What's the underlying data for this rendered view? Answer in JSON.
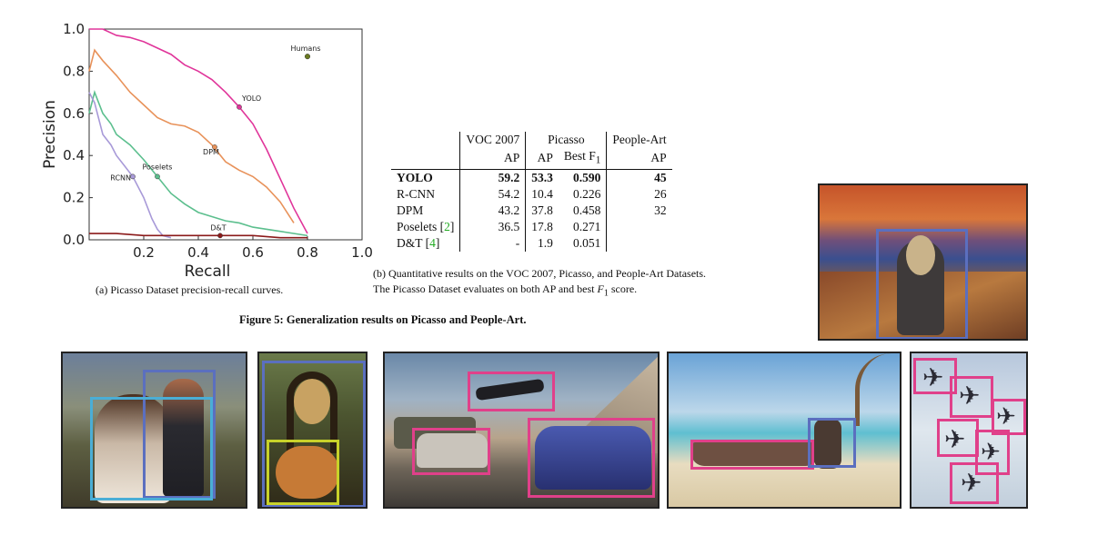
{
  "colors": {
    "humans": "#6b7a22",
    "yolo": "#e0359a",
    "dpm": "#e8925a",
    "poselets": "#5cbf8e",
    "rcnn": "#a89ad8",
    "dt": "#8b1a1a",
    "box_pink": "#e0408a",
    "box_blue": "#5b6fbf",
    "box_cyan": "#4aaed6",
    "box_yellow": "#c8d22a",
    "cite_green": "#22aa22"
  },
  "chart_data": {
    "type": "line",
    "title": "",
    "xlabel": "Recall",
    "ylabel": "Precision",
    "xlim": [
      0.0,
      1.0
    ],
    "ylim": [
      0.0,
      1.0
    ],
    "xticks": [
      "0.2",
      "0.4",
      "0.6",
      "0.8",
      "1.0"
    ],
    "yticks": [
      "0.0",
      "0.2",
      "0.4",
      "0.6",
      "0.8",
      "1.0"
    ],
    "grid": false,
    "series": [
      {
        "name": "YOLO",
        "color": "#e0359a",
        "label_point": [
          0.55,
          0.63
        ],
        "x": [
          0.0,
          0.05,
          0.1,
          0.15,
          0.2,
          0.25,
          0.3,
          0.35,
          0.4,
          0.45,
          0.5,
          0.55,
          0.6,
          0.65,
          0.7,
          0.75,
          0.8
        ],
        "y": [
          1.0,
          1.0,
          0.97,
          0.96,
          0.94,
          0.91,
          0.88,
          0.83,
          0.8,
          0.76,
          0.7,
          0.63,
          0.55,
          0.43,
          0.29,
          0.15,
          0.03
        ]
      },
      {
        "name": "DPM",
        "color": "#e8925a",
        "label_point": [
          0.46,
          0.44
        ],
        "x": [
          0.0,
          0.02,
          0.05,
          0.1,
          0.15,
          0.2,
          0.25,
          0.3,
          0.35,
          0.4,
          0.45,
          0.5,
          0.55,
          0.6,
          0.65,
          0.7,
          0.75
        ],
        "y": [
          0.8,
          0.9,
          0.85,
          0.78,
          0.7,
          0.64,
          0.58,
          0.55,
          0.54,
          0.51,
          0.45,
          0.37,
          0.33,
          0.3,
          0.25,
          0.18,
          0.08
        ]
      },
      {
        "name": "Poselets",
        "color": "#5cbf8e",
        "label_point": [
          0.25,
          0.3
        ],
        "x": [
          0.0,
          0.02,
          0.05,
          0.08,
          0.1,
          0.15,
          0.2,
          0.25,
          0.3,
          0.35,
          0.4,
          0.45,
          0.5,
          0.55,
          0.6,
          0.7,
          0.8
        ],
        "y": [
          0.6,
          0.7,
          0.6,
          0.55,
          0.5,
          0.45,
          0.38,
          0.3,
          0.22,
          0.17,
          0.13,
          0.11,
          0.09,
          0.08,
          0.06,
          0.04,
          0.02
        ]
      },
      {
        "name": "RCNN",
        "color": "#a89ad8",
        "label_point": [
          0.16,
          0.3
        ],
        "x": [
          0.0,
          0.02,
          0.05,
          0.08,
          0.1,
          0.13,
          0.16,
          0.2,
          0.23,
          0.25,
          0.27,
          0.3
        ],
        "y": [
          0.7,
          0.65,
          0.5,
          0.45,
          0.4,
          0.35,
          0.3,
          0.2,
          0.1,
          0.05,
          0.02,
          0.01
        ]
      },
      {
        "name": "D&T",
        "color": "#8b1a1a",
        "label_point": [
          0.48,
          0.02
        ],
        "x": [
          0.0,
          0.1,
          0.2,
          0.3,
          0.4,
          0.48,
          0.6,
          0.7,
          0.8
        ],
        "y": [
          0.03,
          0.03,
          0.02,
          0.02,
          0.02,
          0.02,
          0.02,
          0.01,
          0.01
        ]
      }
    ],
    "points": [
      {
        "name": "Humans",
        "color": "#6b7a22",
        "x": 0.8,
        "y": 0.87
      }
    ]
  },
  "caption_a": "(a) Picasso Dataset precision-recall curves.",
  "table": {
    "header1": {
      "voc": "VOC 2007",
      "picasso": "Picasso",
      "people": "People-Art"
    },
    "header2": {
      "voc_ap": "AP",
      "pic_ap": "AP",
      "pic_f1": "Best F",
      "pic_f1_sub": "1",
      "people_ap": "AP"
    },
    "rows": [
      {
        "name": "YOLO",
        "cite": "",
        "voc": "59.2",
        "pap": "53.3",
        "pf1": "0.590",
        "people": "45",
        "bold": true
      },
      {
        "name": "R-CNN",
        "cite": "",
        "voc": "54.2",
        "pap": "10.4",
        "pf1": "0.226",
        "people": "26",
        "bold": false
      },
      {
        "name": "DPM",
        "cite": "",
        "voc": "43.2",
        "pap": "37.8",
        "pf1": "0.458",
        "people": "32",
        "bold": false
      },
      {
        "name": "Poselets [",
        "cite": "2",
        "voc": "36.5",
        "pap": "17.8",
        "pf1": "0.271",
        "people": "",
        "bold": false
      },
      {
        "name": "D&T [",
        "cite": "4",
        "voc": "-",
        "pap": "1.9",
        "pf1": "0.051",
        "people": "",
        "bold": false
      }
    ]
  },
  "caption_b": {
    "line1": "(b) Quantitative results on the VOC 2007, Picasso, and People-Art Datasets.",
    "line2a": "The Picasso Dataset evaluates on both AP and best ",
    "line2b": "F",
    "line2c": "1",
    "line2d": " score."
  },
  "figure_caption": "Figure 5: Generalization results on Picasso and People-Art."
}
